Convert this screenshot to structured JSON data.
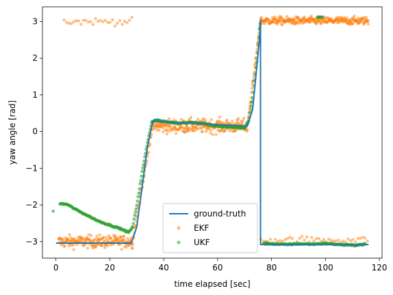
{
  "chart_data": {
    "type": "scatter",
    "title": "",
    "xlabel": "time elapsed [sec]",
    "ylabel": "yaw angle [rad]",
    "xlim": [
      -5,
      121
    ],
    "ylim": [
      -3.45,
      3.4
    ],
    "xticks": [
      0,
      20,
      40,
      60,
      80,
      100,
      120
    ],
    "yticks": [
      -3,
      -2,
      -1,
      0,
      1,
      2,
      3
    ],
    "grid": false,
    "legend": "lower-center",
    "series": [
      {
        "name": "ground-truth",
        "kind": "line",
        "color": "#1f77b4",
        "x": [
          0,
          2,
          28,
          30,
          34,
          36,
          71,
          73,
          75.5,
          75.9,
          75.9,
          116
        ],
        "y": [
          -3.04,
          -3.04,
          -3.04,
          -2.6,
          -0.4,
          0.28,
          0.15,
          0.6,
          2.5,
          3.05,
          -3.08,
          -3.08
        ]
      },
      {
        "name": "EKF",
        "kind": "scatter",
        "color": "#ff7f0e",
        "segments": [
          {
            "x0": 1,
            "x1": 28.5,
            "y": -3.0,
            "noise": 0.16,
            "wrap_y": 3.0,
            "wrap_until": 29
          },
          {
            "x0": 36,
            "x1": 71,
            "y": 0.15,
            "noise": 0.18
          },
          {
            "x0": 76,
            "x1": 116,
            "y": 3.02,
            "noise": 0.1,
            "wrap_y": -2.95,
            "wrap_until": 117
          }
        ]
      },
      {
        "name": "UKF",
        "kind": "scatter",
        "color": "#2ca02c",
        "x": [
          -1,
          1.5,
          4,
          8,
          12,
          16,
          20,
          24,
          27,
          28.5,
          30,
          32,
          34,
          35.5,
          37,
          40,
          45,
          50,
          55,
          60,
          65,
          70,
          71.5,
          73,
          74.5,
          75.5,
          76,
          77,
          80,
          85,
          90,
          95,
          100,
          105,
          110,
          115
        ],
        "y": [
          -2.17,
          -1.97,
          -1.98,
          -2.15,
          -2.3,
          -2.45,
          -2.55,
          -2.65,
          -2.75,
          -2.6,
          -2.0,
          -1.1,
          -0.3,
          0.25,
          0.32,
          0.27,
          0.23,
          0.25,
          0.22,
          0.14,
          0.12,
          0.1,
          0.3,
          0.9,
          1.9,
          2.8,
          3.1,
          -3.05,
          -3.06,
          -3.08,
          -3.06,
          -3.07,
          -3.05,
          -3.08,
          -3.1,
          -3.07
        ]
      }
    ]
  }
}
